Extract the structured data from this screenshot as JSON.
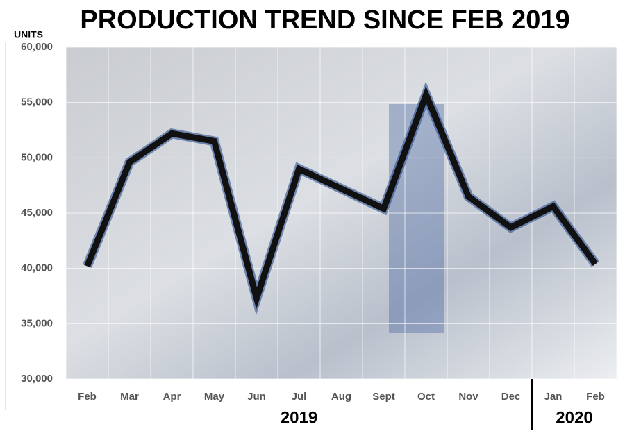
{
  "chart_data": {
    "type": "line",
    "title": "PRODUCTION TREND SINCE FEB 2019",
    "y_axis_label": "UNITS",
    "categories": [
      "Feb",
      "Mar",
      "Apr",
      "May",
      "Jun",
      "Jul",
      "Aug",
      "Sept",
      "Oct",
      "Nov",
      "Dec",
      "Jan",
      "Feb"
    ],
    "groups": [
      {
        "label": "2019",
        "count": 11
      },
      {
        "label": "2020",
        "count": 2
      }
    ],
    "series": [
      {
        "name": "Production",
        "color": "#111111",
        "values": [
          40200,
          49600,
          52200,
          51500,
          37300,
          49000,
          47200,
          45400,
          55700,
          46500,
          43700,
          45600,
          40400
        ]
      }
    ],
    "ylim": [
      30000,
      60000
    ],
    "yticks": [
      {
        "value": 30000,
        "label": "30,000"
      },
      {
        "value": 35000,
        "label": "35,000"
      },
      {
        "value": 40000,
        "label": "40,000"
      },
      {
        "value": 45000,
        "label": "45,000"
      },
      {
        "value": 50000,
        "label": "50,000"
      },
      {
        "value": 55000,
        "label": "55,000"
      },
      {
        "value": 60000,
        "label": "60,000"
      }
    ],
    "grid": true
  }
}
